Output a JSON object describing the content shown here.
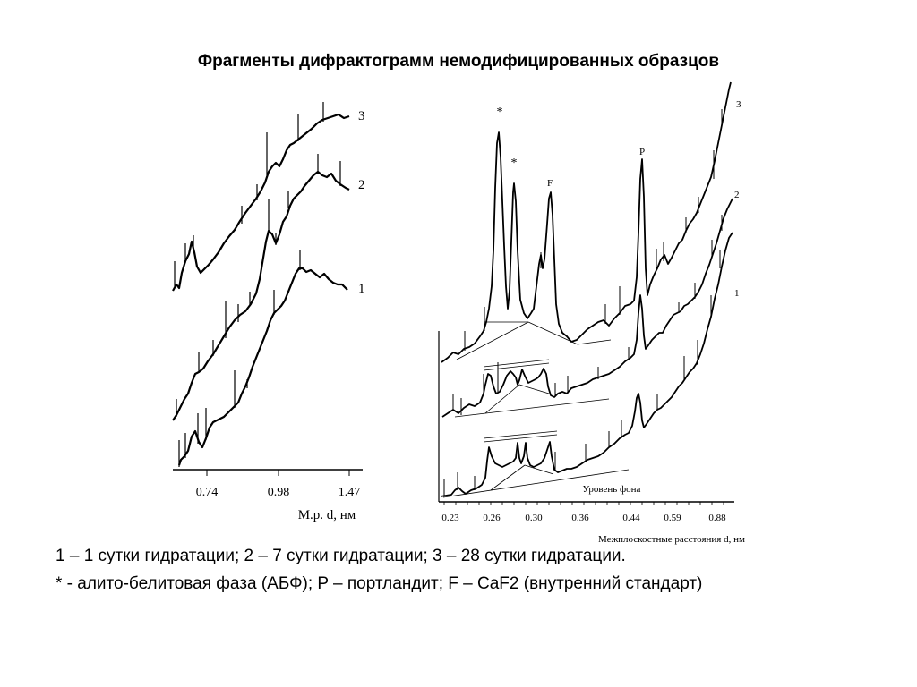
{
  "title": "Фрагменты дифрактограмм немодифицированных образцов",
  "captions": {
    "line1": "1 – 1 сутки гидратации; 2 – 7 сутки гидратации; 3 – 28 сутки гидратации.",
    "line2": "* - алито-белитовая фаза (АБФ); P – портландит; F – CaF2 (внутренний стандарт)"
  },
  "chart_data": [
    {
      "type": "line",
      "xlabel": "М.р. d, нм",
      "x_ticks": [
        "0.74",
        "0.98",
        "1.47"
      ],
      "series": [
        {
          "name": "1"
        },
        {
          "name": "2"
        },
        {
          "name": "3"
        }
      ]
    },
    {
      "type": "line",
      "xlabel": "Межплоскостные расстояния d, нм",
      "x_ticks": [
        "0.23",
        "0.26",
        "0.30",
        "0.36",
        "0.44",
        "0.59",
        "0.88"
      ],
      "series": [
        {
          "name": "1"
        },
        {
          "name": "2"
        },
        {
          "name": "3"
        }
      ],
      "annotations": [
        "*",
        "*",
        "F",
        "P",
        "Уровень фона"
      ]
    }
  ]
}
